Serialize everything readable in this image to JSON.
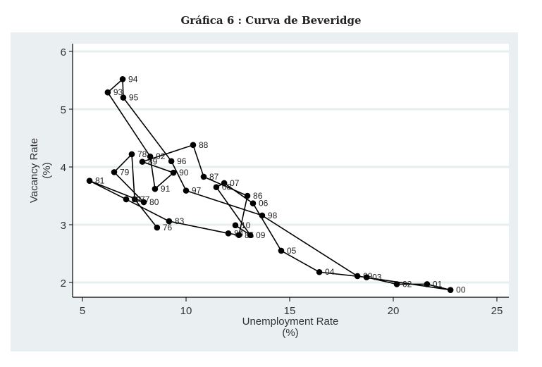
{
  "chart_data": {
    "type": "scatter",
    "title": "Gráfica 6 : Curva de Beveridge",
    "xlabel": "Unemployment Rate",
    "xlabel_unit": "(%)",
    "ylabel": "Vacancy Rate",
    "ylabel_unit": "(%)",
    "xlim": [
      4.5,
      25.5
    ],
    "ylim": [
      1.6,
      6.1
    ],
    "xticks": [
      5,
      10,
      15,
      20,
      25
    ],
    "yticks": [
      2,
      3,
      4,
      5,
      6
    ],
    "grid": "horizontal",
    "connected": true,
    "marker_color": "#000000",
    "points": [
      {
        "label": "76",
        "x": 8.6,
        "y": 2.95
      },
      {
        "label": "77",
        "x": 7.52,
        "y": 3.44
      },
      {
        "label": "78",
        "x": 7.38,
        "y": 4.22
      },
      {
        "label": "79",
        "x": 6.53,
        "y": 3.91
      },
      {
        "label": "80",
        "x": 7.96,
        "y": 3.39
      },
      {
        "label": "81",
        "x": 5.34,
        "y": 3.76
      },
      {
        "label": "82",
        "x": 7.11,
        "y": 3.44
      },
      {
        "label": "83",
        "x": 9.18,
        "y": 3.06
      },
      {
        "label": "84",
        "x": 12.04,
        "y": 2.85
      },
      {
        "label": "85",
        "x": 12.55,
        "y": 2.82
      },
      {
        "label": "86",
        "x": 12.96,
        "y": 3.5
      },
      {
        "label": "87",
        "x": 10.85,
        "y": 3.83
      },
      {
        "label": "88",
        "x": 10.34,
        "y": 4.38
      },
      {
        "label": "89",
        "x": 7.89,
        "y": 4.09
      },
      {
        "label": "90",
        "x": 9.39,
        "y": 3.9
      },
      {
        "label": "91",
        "x": 8.5,
        "y": 3.62
      },
      {
        "label": "92",
        "x": 8.27,
        "y": 4.18
      },
      {
        "label": "93",
        "x": 6.22,
        "y": 5.29
      },
      {
        "label": "94",
        "x": 6.94,
        "y": 5.52
      },
      {
        "label": "95",
        "x": 6.97,
        "y": 5.2
      },
      {
        "label": "96",
        "x": 9.29,
        "y": 4.1
      },
      {
        "label": "97",
        "x": 10.0,
        "y": 3.59
      },
      {
        "label": "98",
        "x": 13.67,
        "y": 3.16
      },
      {
        "label": "99",
        "x": 18.27,
        "y": 2.11
      },
      {
        "label": "00",
        "x": 22.76,
        "y": 1.87
      },
      {
        "label": "01",
        "x": 21.63,
        "y": 1.97
      },
      {
        "label": "02",
        "x": 20.17,
        "y": 1.97
      },
      {
        "label": "03",
        "x": 18.71,
        "y": 2.09
      },
      {
        "label": "04",
        "x": 16.43,
        "y": 2.18
      },
      {
        "label": "05",
        "x": 14.59,
        "y": 2.55
      },
      {
        "label": "06",
        "x": 13.23,
        "y": 3.37
      },
      {
        "label": "07",
        "x": 11.84,
        "y": 3.72
      },
      {
        "label": "08",
        "x": 11.46,
        "y": 3.65
      },
      {
        "label": "09",
        "x": 13.1,
        "y": 2.82
      },
      {
        "label": "10",
        "x": 12.38,
        "y": 2.99
      }
    ]
  }
}
